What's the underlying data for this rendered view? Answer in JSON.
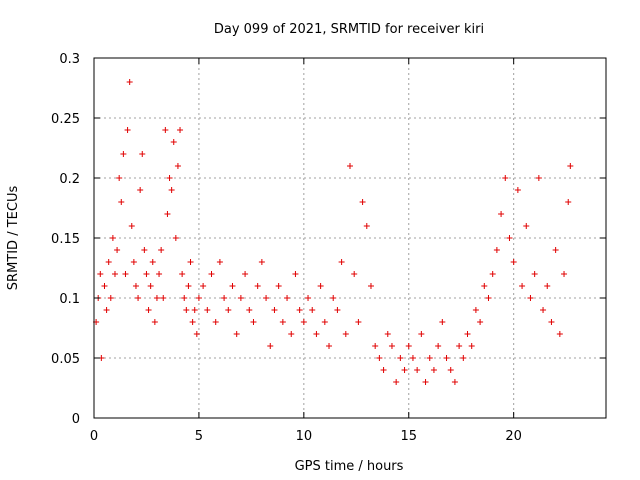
{
  "chart_data": {
    "type": "scatter",
    "title": "Day 099 of 2021, SRMTID for receiver kiri",
    "xlabel": "GPS time / hours",
    "ylabel": "SRMTID / TECUs",
    "xlim": [
      0,
      24.4
    ],
    "ylim": [
      0,
      0.3
    ],
    "xticks": [
      "0",
      "5",
      "10",
      "15",
      "20"
    ],
    "xtick_values": [
      0,
      5,
      10,
      15,
      20
    ],
    "yticks": [
      "0",
      "0.05",
      "0.1",
      "0.15",
      "0.2",
      "0.25",
      "0.3"
    ],
    "ytick_values": [
      0,
      0.05,
      0.1,
      0.15,
      0.2,
      0.25,
      0.3
    ],
    "grid": true,
    "marker": "plus",
    "color": "#e00000",
    "series": [
      {
        "x": [
          0.1,
          0.2,
          0.3,
          0.35,
          0.5,
          0.6,
          0.7,
          0.8,
          0.9,
          1.0,
          1.1,
          1.2,
          1.3,
          1.4,
          1.5,
          1.6,
          1.7,
          1.8,
          1.9,
          2.0,
          2.1,
          2.2,
          2.3,
          2.4,
          2.5,
          2.6,
          2.7,
          2.8,
          2.9,
          3.0,
          3.1,
          3.2,
          3.3,
          3.4,
          3.5,
          3.6,
          3.7,
          3.8,
          3.9,
          4.0,
          4.1,
          4.2,
          4.3,
          4.4,
          4.5,
          4.6,
          4.7,
          4.8,
          4.9,
          5.0,
          5.2,
          5.4,
          5.6,
          5.8,
          6.0,
          6.2,
          6.4,
          6.6,
          6.8,
          7.0,
          7.2,
          7.4,
          7.6,
          7.8,
          8.0,
          8.2,
          8.4,
          8.6,
          8.8,
          9.0,
          9.2,
          9.4,
          9.6,
          9.8,
          10.0,
          10.2,
          10.4,
          10.6,
          10.8,
          11.0,
          11.2,
          11.4,
          11.6,
          11.8,
          12.0,
          12.2,
          12.4,
          12.6,
          12.8,
          13.0,
          13.2,
          13.4,
          13.6,
          13.8,
          14.0,
          14.2,
          14.4,
          14.6,
          14.8,
          15.0,
          15.2,
          15.4,
          15.6,
          15.8,
          16.0,
          16.2,
          16.4,
          16.6,
          16.8,
          17.0,
          17.2,
          17.4,
          17.6,
          17.8,
          18.0,
          18.2,
          18.4,
          18.6,
          18.8,
          19.0,
          19.2,
          19.4,
          19.6,
          19.8,
          20.0,
          20.2,
          20.4,
          20.6,
          20.8,
          21.0,
          21.2,
          21.4,
          21.6,
          21.8,
          22.0,
          22.2,
          22.4,
          22.6,
          22.7
        ],
        "y": [
          0.08,
          0.1,
          0.12,
          0.05,
          0.11,
          0.09,
          0.13,
          0.1,
          0.15,
          0.12,
          0.14,
          0.2,
          0.18,
          0.22,
          0.12,
          0.24,
          0.28,
          0.16,
          0.13,
          0.11,
          0.1,
          0.19,
          0.22,
          0.14,
          0.12,
          0.09,
          0.11,
          0.13,
          0.08,
          0.1,
          0.12,
          0.14,
          0.1,
          0.24,
          0.17,
          0.2,
          0.19,
          0.23,
          0.15,
          0.21,
          0.24,
          0.12,
          0.1,
          0.09,
          0.11,
          0.13,
          0.08,
          0.09,
          0.07,
          0.1,
          0.11,
          0.09,
          0.12,
          0.08,
          0.13,
          0.1,
          0.09,
          0.11,
          0.07,
          0.1,
          0.12,
          0.09,
          0.08,
          0.11,
          0.13,
          0.1,
          0.06,
          0.09,
          0.11,
          0.08,
          0.1,
          0.07,
          0.12,
          0.09,
          0.08,
          0.1,
          0.09,
          0.07,
          0.11,
          0.08,
          0.06,
          0.1,
          0.09,
          0.13,
          0.07,
          0.21,
          0.12,
          0.08,
          0.18,
          0.16,
          0.11,
          0.06,
          0.05,
          0.04,
          0.07,
          0.06,
          0.03,
          0.05,
          0.04,
          0.06,
          0.05,
          0.04,
          0.07,
          0.03,
          0.05,
          0.04,
          0.06,
          0.08,
          0.05,
          0.04,
          0.03,
          0.06,
          0.05,
          0.07,
          0.06,
          0.09,
          0.08,
          0.11,
          0.1,
          0.12,
          0.14,
          0.17,
          0.2,
          0.15,
          0.13,
          0.19,
          0.11,
          0.16,
          0.1,
          0.12,
          0.2,
          0.09,
          0.11,
          0.08,
          0.14,
          0.07,
          0.12,
          0.18,
          0.21
        ]
      }
    ]
  }
}
